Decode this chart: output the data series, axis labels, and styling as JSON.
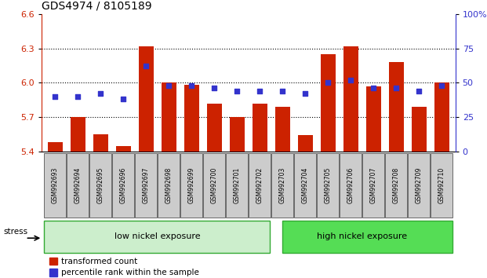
{
  "title": "GDS4974 / 8105189",
  "samples": [
    "GSM992693",
    "GSM992694",
    "GSM992695",
    "GSM992696",
    "GSM992697",
    "GSM992698",
    "GSM992699",
    "GSM992700",
    "GSM992701",
    "GSM992702",
    "GSM992703",
    "GSM992704",
    "GSM992705",
    "GSM992706",
    "GSM992707",
    "GSM992708",
    "GSM992709",
    "GSM992710"
  ],
  "bar_values": [
    5.48,
    5.7,
    5.55,
    5.45,
    6.32,
    6.0,
    5.98,
    5.82,
    5.7,
    5.82,
    5.79,
    5.54,
    6.25,
    6.32,
    5.97,
    6.18,
    5.79,
    6.0
  ],
  "marker_values_pct": [
    40,
    40,
    42,
    38,
    62,
    48,
    48,
    46,
    44,
    44,
    44,
    42,
    50,
    52,
    46,
    46,
    44,
    48
  ],
  "bar_color": "#cc2200",
  "marker_color": "#3333cc",
  "ylim_left": [
    5.4,
    6.6
  ],
  "ylim_right": [
    0,
    100
  ],
  "yticks_left": [
    5.4,
    5.7,
    6.0,
    6.3,
    6.6
  ],
  "yticks_right": [
    0,
    25,
    50,
    75,
    100
  ],
  "ytick_labels_right": [
    "0",
    "25",
    "50",
    "75",
    "100%"
  ],
  "hlines": [
    5.7,
    6.0,
    6.3
  ],
  "group1_label": "low nickel exposure",
  "group2_label": "high nickel exposure",
  "group1_count": 10,
  "stress_label": "stress",
  "legend1": "transformed count",
  "legend2": "percentile rank within the sample",
  "group1_color": "#cceecc",
  "group2_color": "#55dd55",
  "tick_fontsize": 8,
  "label_fontsize": 5.5,
  "group_fontsize": 8,
  "title_fontsize": 10
}
